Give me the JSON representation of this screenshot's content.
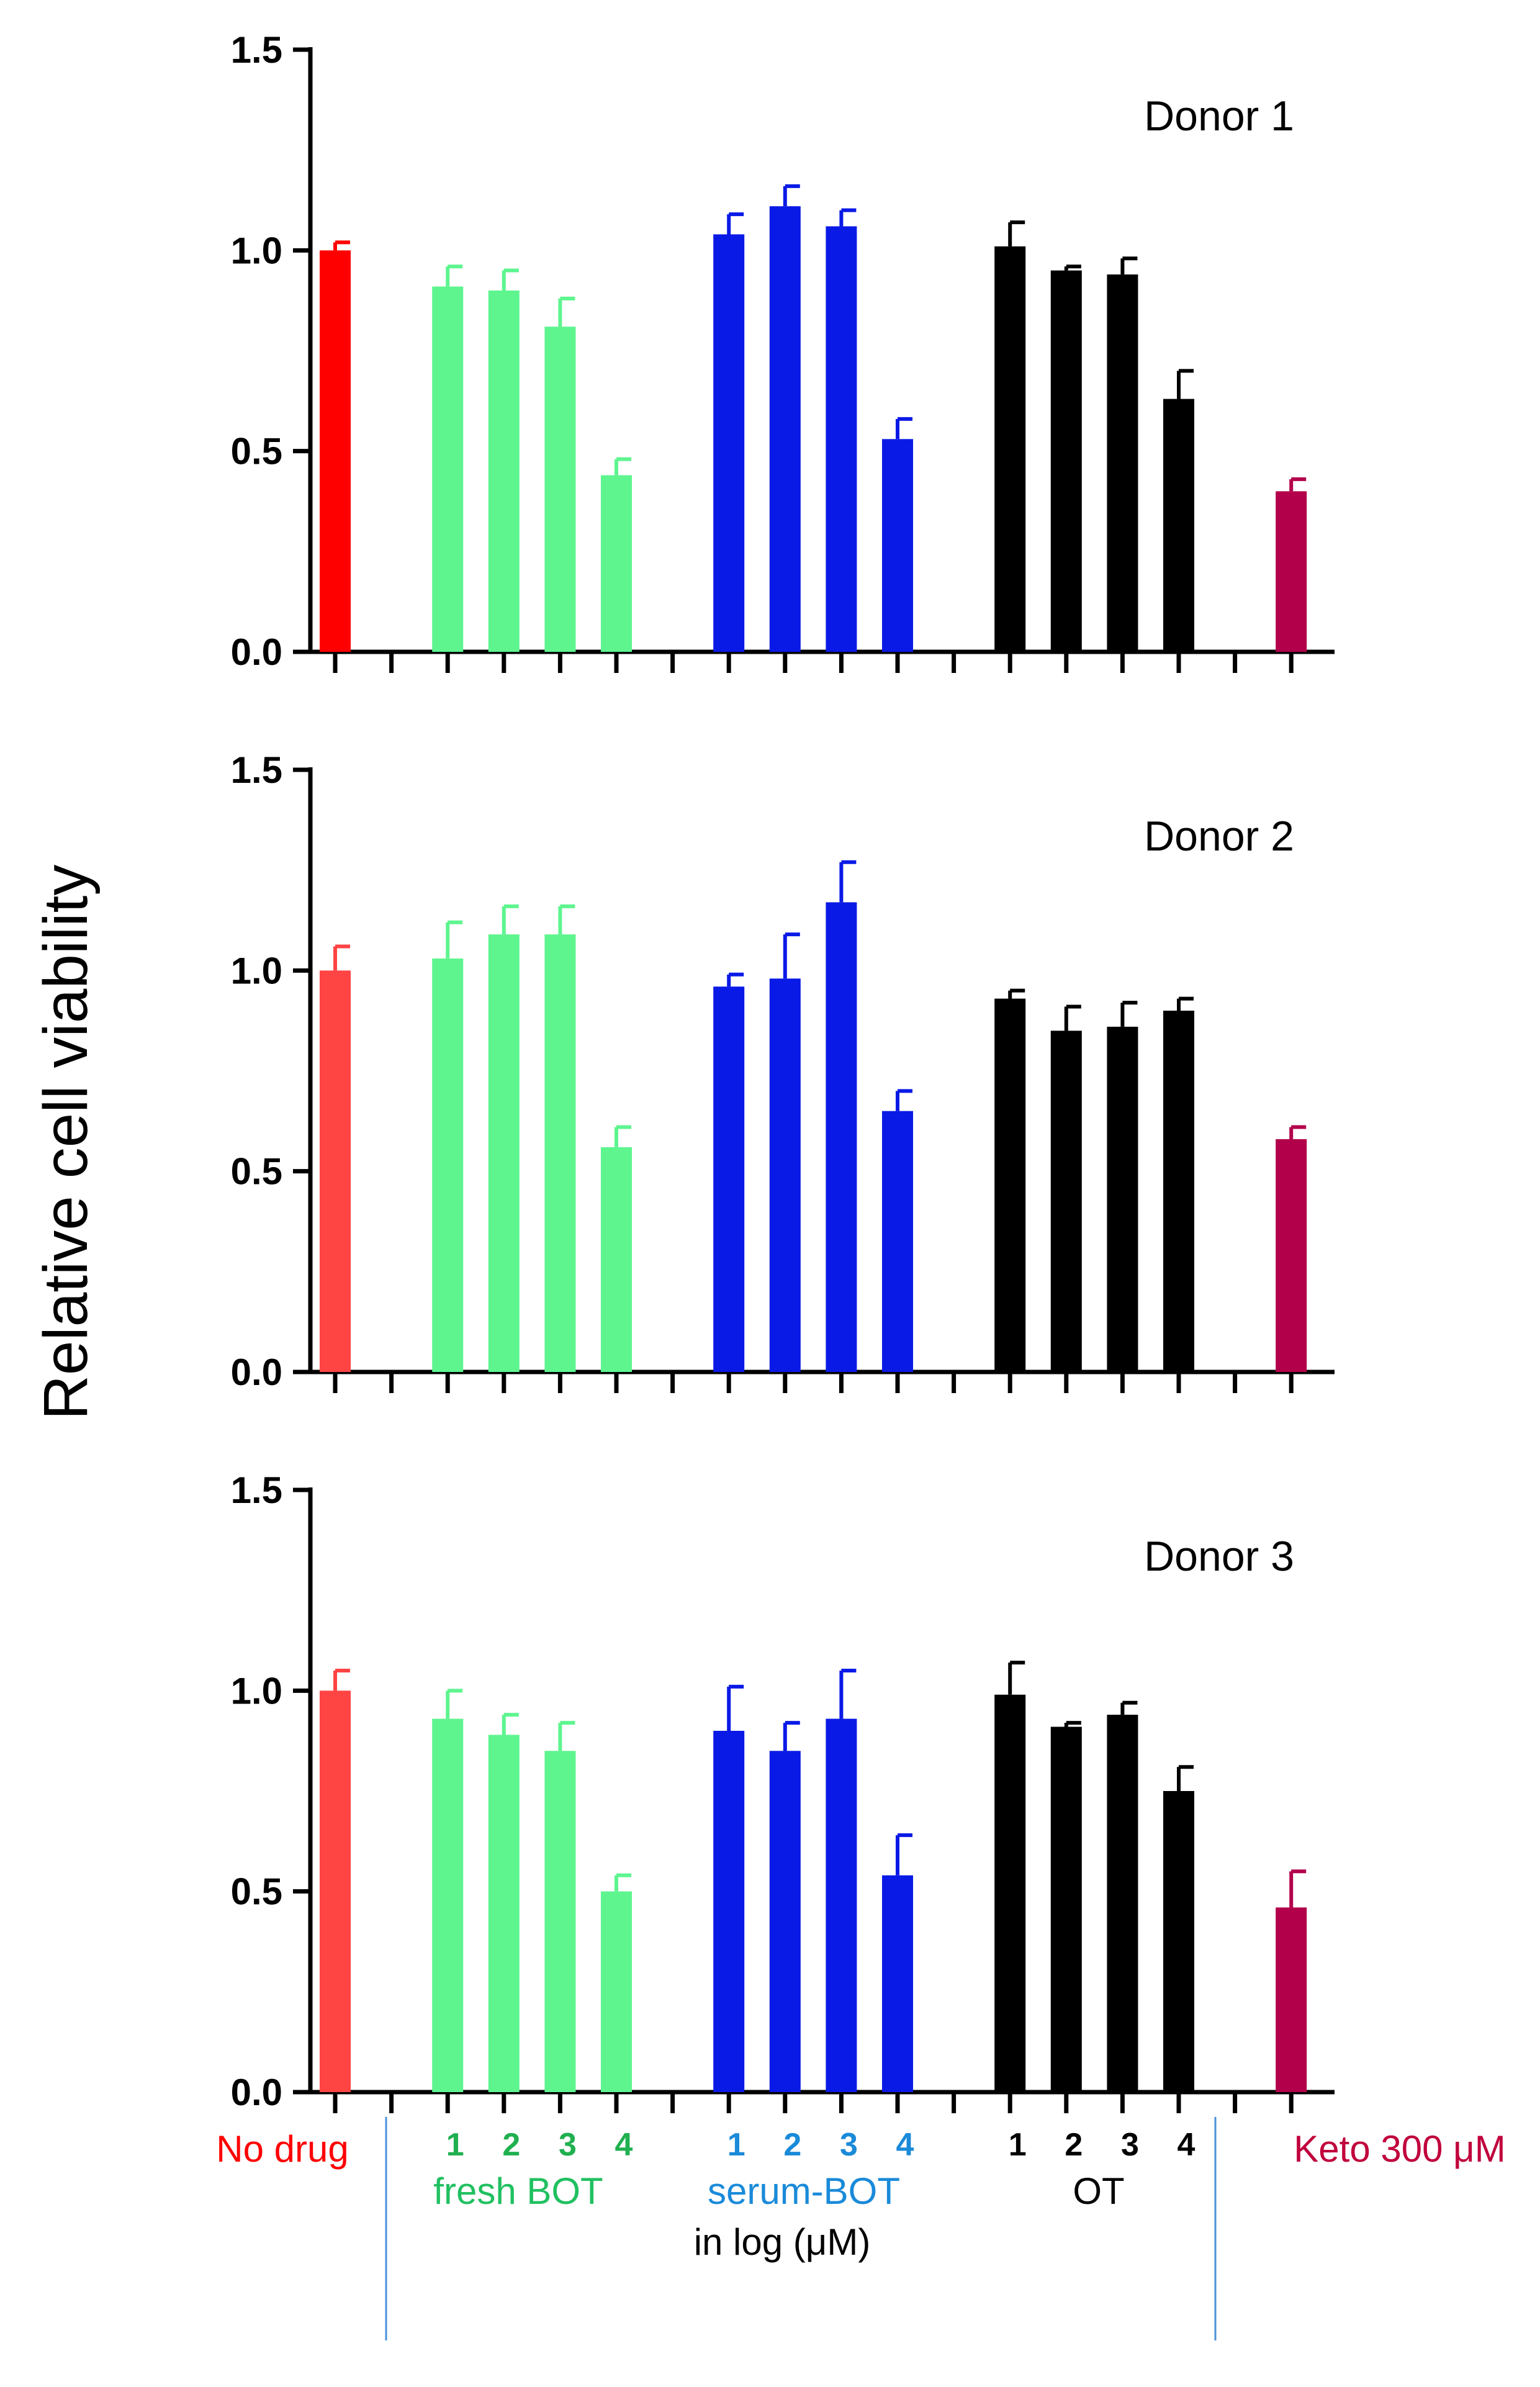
{
  "chart_data": {
    "type": "bar",
    "ylabel": "Relative cell viability",
    "ylim": [
      0,
      1.5
    ],
    "yticks": [
      "0.0",
      "0.5",
      "1.0",
      "1.5"
    ],
    "groups": [
      {
        "name": "No drug",
        "color": "#ff0000",
        "numbers": []
      },
      {
        "name": "fresh BOT",
        "color": "#5ef58f",
        "numbers": [
          "1",
          "2",
          "3",
          "4"
        ]
      },
      {
        "name": "serum-BOT",
        "color": "#0a1ae6",
        "numbers": [
          "1",
          "2",
          "3",
          "4"
        ]
      },
      {
        "name": "OT",
        "color": "#000000",
        "numbers": [
          "1",
          "2",
          "3",
          "4"
        ]
      },
      {
        "name": "Keto 300 μM",
        "color": "#b3004b",
        "numbers": []
      }
    ],
    "label_colors": {
      "No drug": "#ff0000",
      "fresh BOT": "#20c060",
      "fresh BOT numbers": "#20b050",
      "serum-BOT": "#1a8ad9",
      "serum-BOT numbers": "#1a8ad9",
      "OT": "#000000",
      "Keto 300 μM": "#c0003c"
    },
    "xnote": "in log (μM)",
    "panels": [
      {
        "title": "Donor 1",
        "series": [
          {
            "name": "No drug",
            "values": [
              1.0
            ],
            "errors": [
              0.02
            ],
            "color": "#ff0000"
          },
          {
            "name": "fresh BOT",
            "values": [
              0.91,
              0.9,
              0.81,
              0.44
            ],
            "errors": [
              0.05,
              0.05,
              0.07,
              0.04
            ],
            "color": "#5ef58f"
          },
          {
            "name": "serum-BOT",
            "values": [
              1.04,
              1.11,
              1.06,
              0.53
            ],
            "errors": [
              0.05,
              0.05,
              0.04,
              0.05
            ],
            "color": "#0a1ae6"
          },
          {
            "name": "OT",
            "values": [
              1.01,
              0.95,
              0.94,
              0.63
            ],
            "errors": [
              0.06,
              0.01,
              0.04,
              0.07
            ],
            "color": "#000000"
          },
          {
            "name": "Keto 300 μM",
            "values": [
              0.4
            ],
            "errors": [
              0.03
            ],
            "color": "#b3004b"
          }
        ]
      },
      {
        "title": "Donor 2",
        "series": [
          {
            "name": "No drug",
            "values": [
              1.0
            ],
            "errors": [
              0.06
            ],
            "color": "#ff4444"
          },
          {
            "name": "fresh BOT",
            "values": [
              1.03,
              1.09,
              1.09,
              0.56
            ],
            "errors": [
              0.09,
              0.07,
              0.07,
              0.05
            ],
            "color": "#5ef58f"
          },
          {
            "name": "serum-BOT",
            "values": [
              0.96,
              0.98,
              1.17,
              0.65
            ],
            "errors": [
              0.03,
              0.11,
              0.1,
              0.05
            ],
            "color": "#0a1ae6"
          },
          {
            "name": "OT",
            "values": [
              0.93,
              0.85,
              0.86,
              0.9
            ],
            "errors": [
              0.02,
              0.06,
              0.06,
              0.03
            ],
            "color": "#000000"
          },
          {
            "name": "Keto 300 μM",
            "values": [
              0.58
            ],
            "errors": [
              0.03
            ],
            "color": "#b3004b"
          }
        ]
      },
      {
        "title": "Donor 3",
        "series": [
          {
            "name": "No drug",
            "values": [
              1.0
            ],
            "errors": [
              0.05
            ],
            "color": "#ff4444"
          },
          {
            "name": "fresh BOT",
            "values": [
              0.93,
              0.89,
              0.85,
              0.5
            ],
            "errors": [
              0.07,
              0.05,
              0.07,
              0.04
            ],
            "color": "#5ef58f"
          },
          {
            "name": "serum-BOT",
            "values": [
              0.9,
              0.85,
              0.93,
              0.54
            ],
            "errors": [
              0.11,
              0.07,
              0.12,
              0.1
            ],
            "color": "#0a1ae6"
          },
          {
            "name": "OT",
            "values": [
              0.99,
              0.91,
              0.94,
              0.75
            ],
            "errors": [
              0.08,
              0.01,
              0.03,
              0.06
            ],
            "color": "#000000"
          },
          {
            "name": "Keto 300 μM",
            "values": [
              0.46
            ],
            "errors": [
              0.09
            ],
            "color": "#b3004b"
          }
        ]
      }
    ]
  }
}
